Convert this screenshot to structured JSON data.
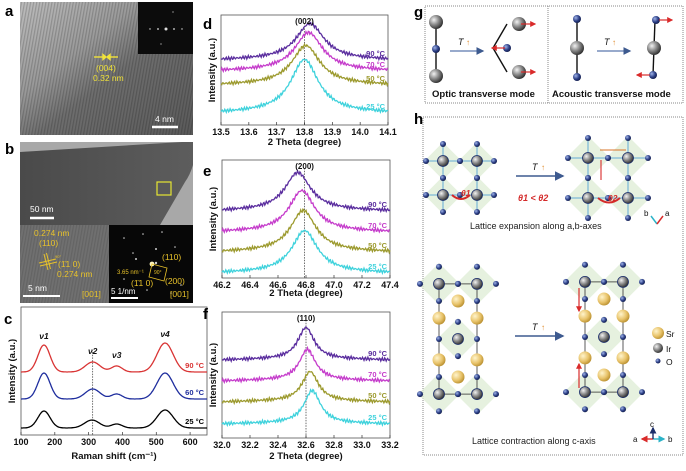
{
  "panels": {
    "a": {
      "label": "a",
      "annotation_plane": "(004)",
      "annotation_spacing": "0.32 nm",
      "scale_bar": "4 nm"
    },
    "b": {
      "label": "b",
      "scale_bar_top": "50 nm",
      "hrtem_spacing_1": "0.274 nm",
      "hrtem_plane_1": "(110)",
      "hrtem_angle": "90°",
      "hrtem_plane_2": "(1̄1 0)",
      "hrtem_spacing_2": "0.274 nm",
      "hrtem_scale_bar": "5 nm",
      "hrtem_zone": "[001]",
      "fft_plane_110": "(110)",
      "fft_distance": "3.65 nm⁻¹",
      "fft_angle": "90°",
      "fft_plane_1bar10": "(1̄1 0)",
      "fft_plane_200": "(200)",
      "fft_scale_bar": "5 1/nm",
      "fft_zone": "[001]"
    },
    "g": {
      "label": "g",
      "left_caption": "Optic transverse mode",
      "right_caption": "Acoustic transverse mode",
      "arrow_label": "T",
      "arrow_symbol": "↑"
    },
    "h": {
      "label": "h",
      "arrow_label": "T",
      "arrow_symbol": "↑",
      "theta1": "θ1",
      "theta2": "θ2",
      "theta_relation": "θ1 < θ2",
      "top_caption": "Lattice expansion along a,b-axes",
      "bottom_caption": "Lattice contraction along c-axis",
      "legend": [
        "Sr",
        "Ir",
        "O"
      ],
      "axes_top": [
        "b",
        "a"
      ],
      "axes_bottom": [
        "a",
        "c",
        "b"
      ]
    }
  },
  "colors": {
    "90C": "#5a2d9e",
    "70C": "#c53ccb",
    "50C": "#9c9a2e",
    "25C": "#3fd2dc",
    "raman_90C": "#d93434",
    "raman_60C": "#1f2e9e",
    "raman_25C": "#000000",
    "annotation_yellow": "#e8c22a",
    "arrow_red": "#d92a2a"
  },
  "chart_data": [
    {
      "panel": "c",
      "type": "line",
      "label": "c",
      "xlabel": "Raman shift (cm⁻¹)",
      "ylabel": "Intensity (a.u.)",
      "xlim": [
        100,
        650
      ],
      "xticks": [
        "100",
        "200",
        "300",
        "400",
        "500",
        "600"
      ],
      "grid": false,
      "peak_labels": [
        "ν1",
        "ν2",
        "ν3",
        "ν4"
      ],
      "peak_positions": [
        168,
        312,
        383,
        526
      ],
      "reference_line": 312,
      "series": [
        {
          "name": "90 °C",
          "color_key": "raman_90C",
          "peaks": [
            168,
            312,
            383,
            526
          ]
        },
        {
          "name": "60 °C",
          "color_key": "raman_60C",
          "peaks": [
            168,
            312,
            383,
            526
          ]
        },
        {
          "name": "25 °C",
          "color_key": "raman_25C",
          "peaks": [
            168,
            310,
            383,
            526
          ]
        }
      ]
    },
    {
      "panel": "d",
      "type": "line",
      "label": "d",
      "peak_label": "(002)",
      "xlabel": "2 Theta (degree)",
      "ylabel": "Intensity (a.u.)",
      "xlim": [
        13.5,
        14.1
      ],
      "xticks": [
        "13.5",
        "13.6",
        "13.7",
        "13.8",
        "13.9",
        "14.0",
        "14.1"
      ],
      "reference_line": 13.8,
      "grid": false,
      "series": [
        {
          "name": "90 °C",
          "color_key": "90C",
          "peak": 13.82
        },
        {
          "name": "70 °C",
          "color_key": "70C",
          "peak": 13.815
        },
        {
          "name": "50 °C",
          "color_key": "50C",
          "peak": 13.805
        },
        {
          "name": "25 °C",
          "color_key": "25C",
          "peak": 13.8
        }
      ]
    },
    {
      "panel": "e",
      "type": "line",
      "label": "e",
      "peak_label": "(200)",
      "xlabel": "2 Theta (degree)",
      "ylabel": "Intensity (a.u.)",
      "xlim": [
        46.2,
        47.4
      ],
      "xticks": [
        "46.2",
        "46.4",
        "46.6",
        "46.8",
        "47.0",
        "47.2",
        "47.4"
      ],
      "reference_line": 46.79,
      "grid": false,
      "series": [
        {
          "name": "90 °C",
          "color_key": "90C",
          "peak": 46.74
        },
        {
          "name": "70 °C",
          "color_key": "70C",
          "peak": 46.77
        },
        {
          "name": "50 °C",
          "color_key": "50C",
          "peak": 46.78
        },
        {
          "name": "25 °C",
          "color_key": "25C",
          "peak": 46.79
        }
      ]
    },
    {
      "panel": "f",
      "type": "line",
      "label": "f",
      "peak_label": "(110)",
      "xlabel": "2 Theta (degree)",
      "ylabel": "Intensity (a.u.)",
      "xlim": [
        32.0,
        33.2
      ],
      "xticks": [
        "32.0",
        "32.2",
        "32.4",
        "32.6",
        "32.8",
        "33.0",
        "33.2"
      ],
      "reference_line": 32.6,
      "grid": false,
      "series": [
        {
          "name": "90 °C",
          "color_key": "90C",
          "peak": 32.6
        },
        {
          "name": "70 °C",
          "color_key": "70C",
          "peak": 32.61
        },
        {
          "name": "50 °C",
          "color_key": "50C",
          "peak": 32.63
        },
        {
          "name": "25 °C",
          "color_key": "25C",
          "peak": 32.645
        }
      ]
    }
  ]
}
